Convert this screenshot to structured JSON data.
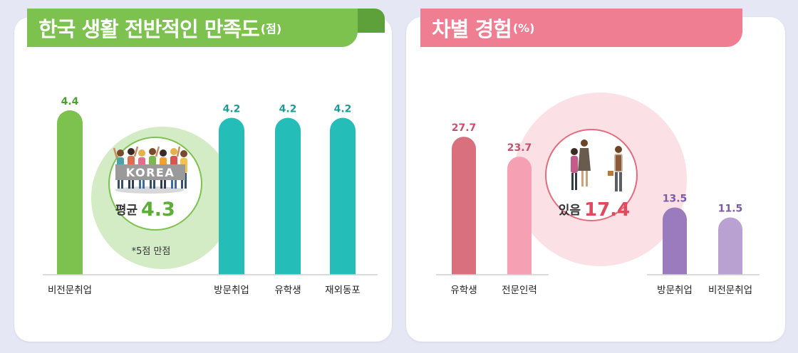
{
  "colors": {
    "background": "#e6e7f4",
    "green": "#7dc14f",
    "green_dark": "#4e9f35",
    "teal": "#25bdb7",
    "pink_title": "#f07e92",
    "pink_dark": "#c9506a",
    "rose": "#d9707e",
    "light_pink": "#f5a0b3",
    "purple": "#9a7bbd",
    "light_purple": "#b9a1d2",
    "average_green": "#5cae39",
    "average_red": "#e04a5c"
  },
  "left": {
    "title": "한국 생활 전반적인 만족도",
    "unit": "(점)",
    "average_label": "평균",
    "average_value": "4.3",
    "banner_text": "KOREA",
    "footnote": "*5점 만점",
    "illustration": "people-holding-korea-banner-icon"
  },
  "right": {
    "title": "차별 경험",
    "unit": "(%)",
    "center_label": "있음",
    "center_value": "17.4",
    "illustration": "people-discrimination-icon"
  },
  "chart_data": [
    {
      "type": "bar",
      "title": "한국 생활 전반적인 만족도(점)",
      "categories": [
        "비전문취업",
        "방문취업",
        "유학생",
        "재외동포"
      ],
      "values": [
        4.4,
        4.2,
        4.2,
        4.2
      ],
      "average": 4.3,
      "max_score": 5,
      "colors": [
        "#7dc14f",
        "#25bdb7",
        "#25bdb7",
        "#25bdb7"
      ],
      "label_colors": [
        "#4e9f35",
        "#1b9c97",
        "#1b9c97",
        "#1b9c97"
      ],
      "grid": false
    },
    {
      "type": "bar",
      "title": "차별 경험(%)",
      "categories": [
        "유학생",
        "전문인력",
        "방문취업",
        "비전문취업"
      ],
      "values": [
        27.7,
        23.7,
        13.5,
        11.5
      ],
      "overall": 17.4,
      "colors": [
        "#d9707e",
        "#f5a0b3",
        "#9a7bbd",
        "#b9a1d2"
      ],
      "label_colors": [
        "#c9506a",
        "#c9506a",
        "#7d5aa6",
        "#7d5aa6"
      ],
      "grid": false
    }
  ]
}
